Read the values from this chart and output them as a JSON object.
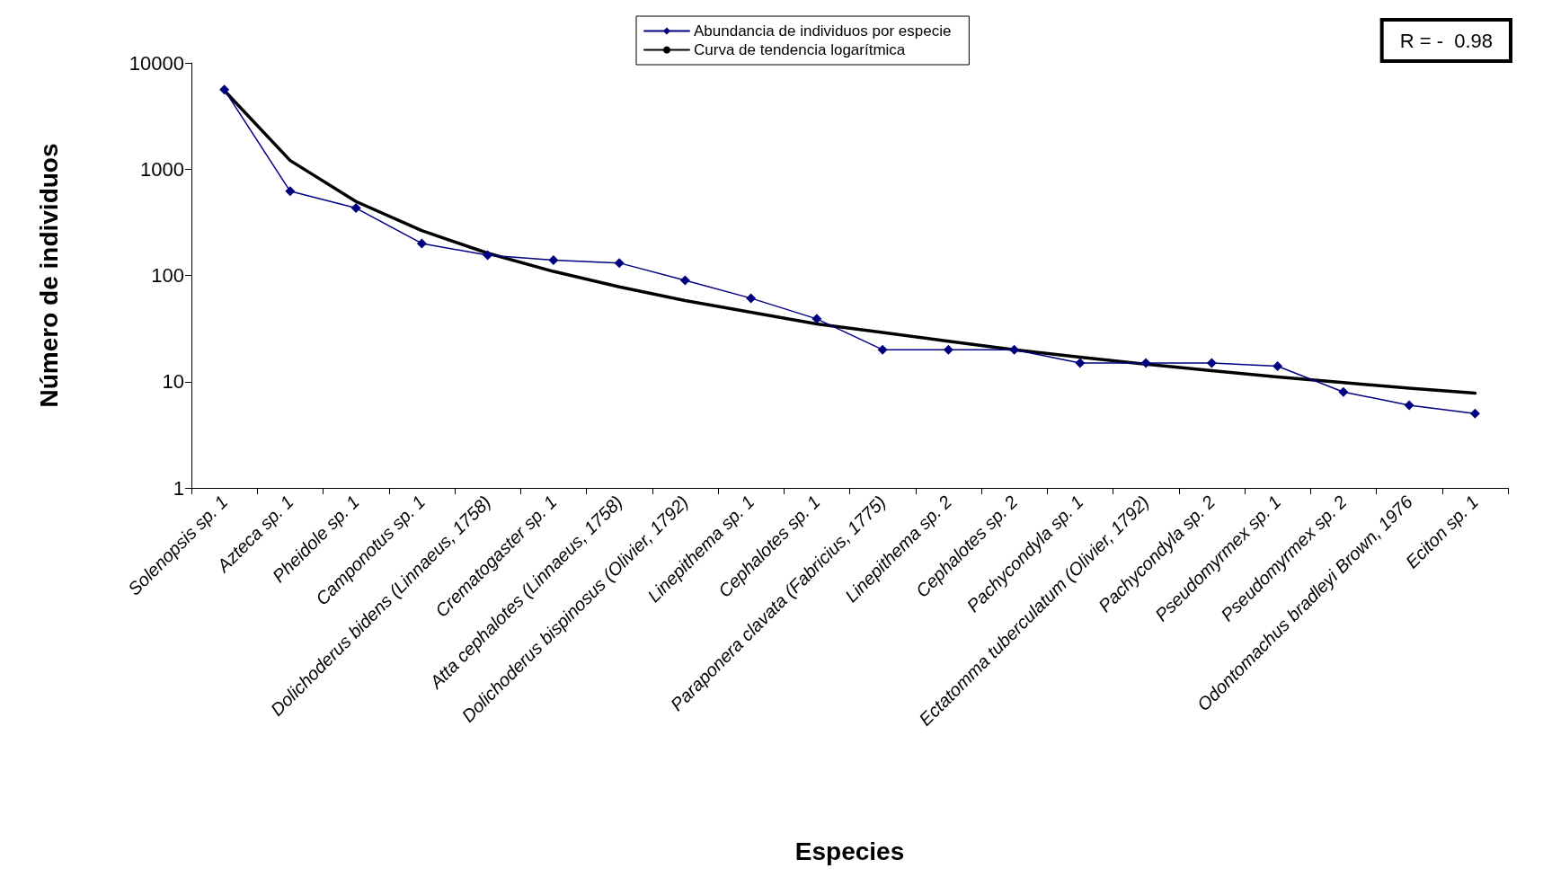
{
  "chart_data": {
    "type": "line",
    "xlabel": "Especies",
    "ylabel": "Número de individuos",
    "categories": [
      "Solenopsis sp. 1",
      "Azteca sp. 1",
      "Pheidole sp. 1",
      "Camponotus sp. 1",
      "Dolichoderus bidens (Linnaeus, 1758)",
      "Crematogaster sp. 1",
      "Atta cephalotes (Linnaeus, 1758)",
      "Dolichoderus bispinosus (Olivier, 1792)",
      "Linepithema sp. 1",
      "Cephalotes sp. 1",
      "Paraponera clavata (Fabricius, 1775)",
      "Linepithema sp. 2",
      "Cephalotes sp. 2",
      "Pachycondyla sp. 1",
      "Ectatomma tuberculatum (Olivier, 1792)",
      "Pachycondyla sp. 2",
      "Pseudomyrmex sp. 1",
      "Pseudomyrmex sp. 2",
      "Odontomachus bradleyi Brown, 1976",
      "Eciton sp. 1"
    ],
    "series": [
      {
        "name": "Abundancia de individuos por especie",
        "color": "#000080",
        "marker": "diamond",
        "values": [
          5600,
          620,
          430,
          200,
          155,
          139,
          131,
          90,
          61,
          39,
          20,
          20,
          20,
          15,
          15,
          15,
          14,
          8,
          6,
          5
        ]
      },
      {
        "name": "Curva de tendencia logarítmica",
        "color": "#000000",
        "marker": "none",
        "values": [
          5500,
          1206,
          496,
          264,
          162,
          109,
          78,
          58,
          45,
          35,
          29,
          24,
          20,
          17,
          14.6,
          12.7,
          11.1,
          9.8,
          8.7,
          7.8
        ]
      }
    ],
    "log": true,
    "ylim": [
      1,
      10000
    ],
    "yticks": [
      1,
      10,
      100,
      1000,
      10000
    ],
    "grid": false,
    "legend": "top",
    "annotations": [
      "R = -  0.98"
    ]
  }
}
